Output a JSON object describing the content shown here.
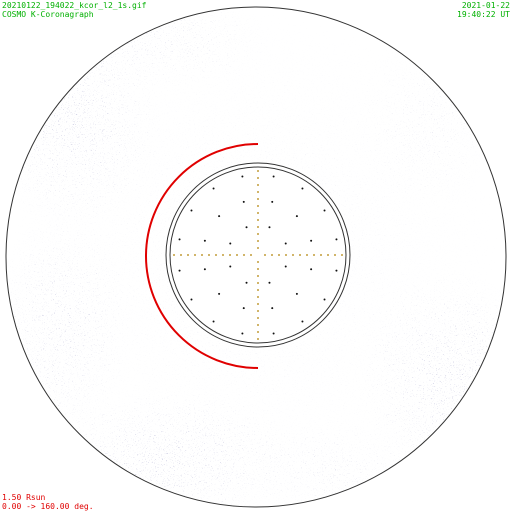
{
  "header": {
    "filename": "20210122_194022_kcor_l2_1s.gif",
    "instrument": "COSMO K-Coronagraph",
    "date": "2021-01-22",
    "time": "19:40:22 UT"
  },
  "footer": {
    "scale": "1.50 Rsun",
    "range": "0.00 -> 160.00 deg."
  }
}
